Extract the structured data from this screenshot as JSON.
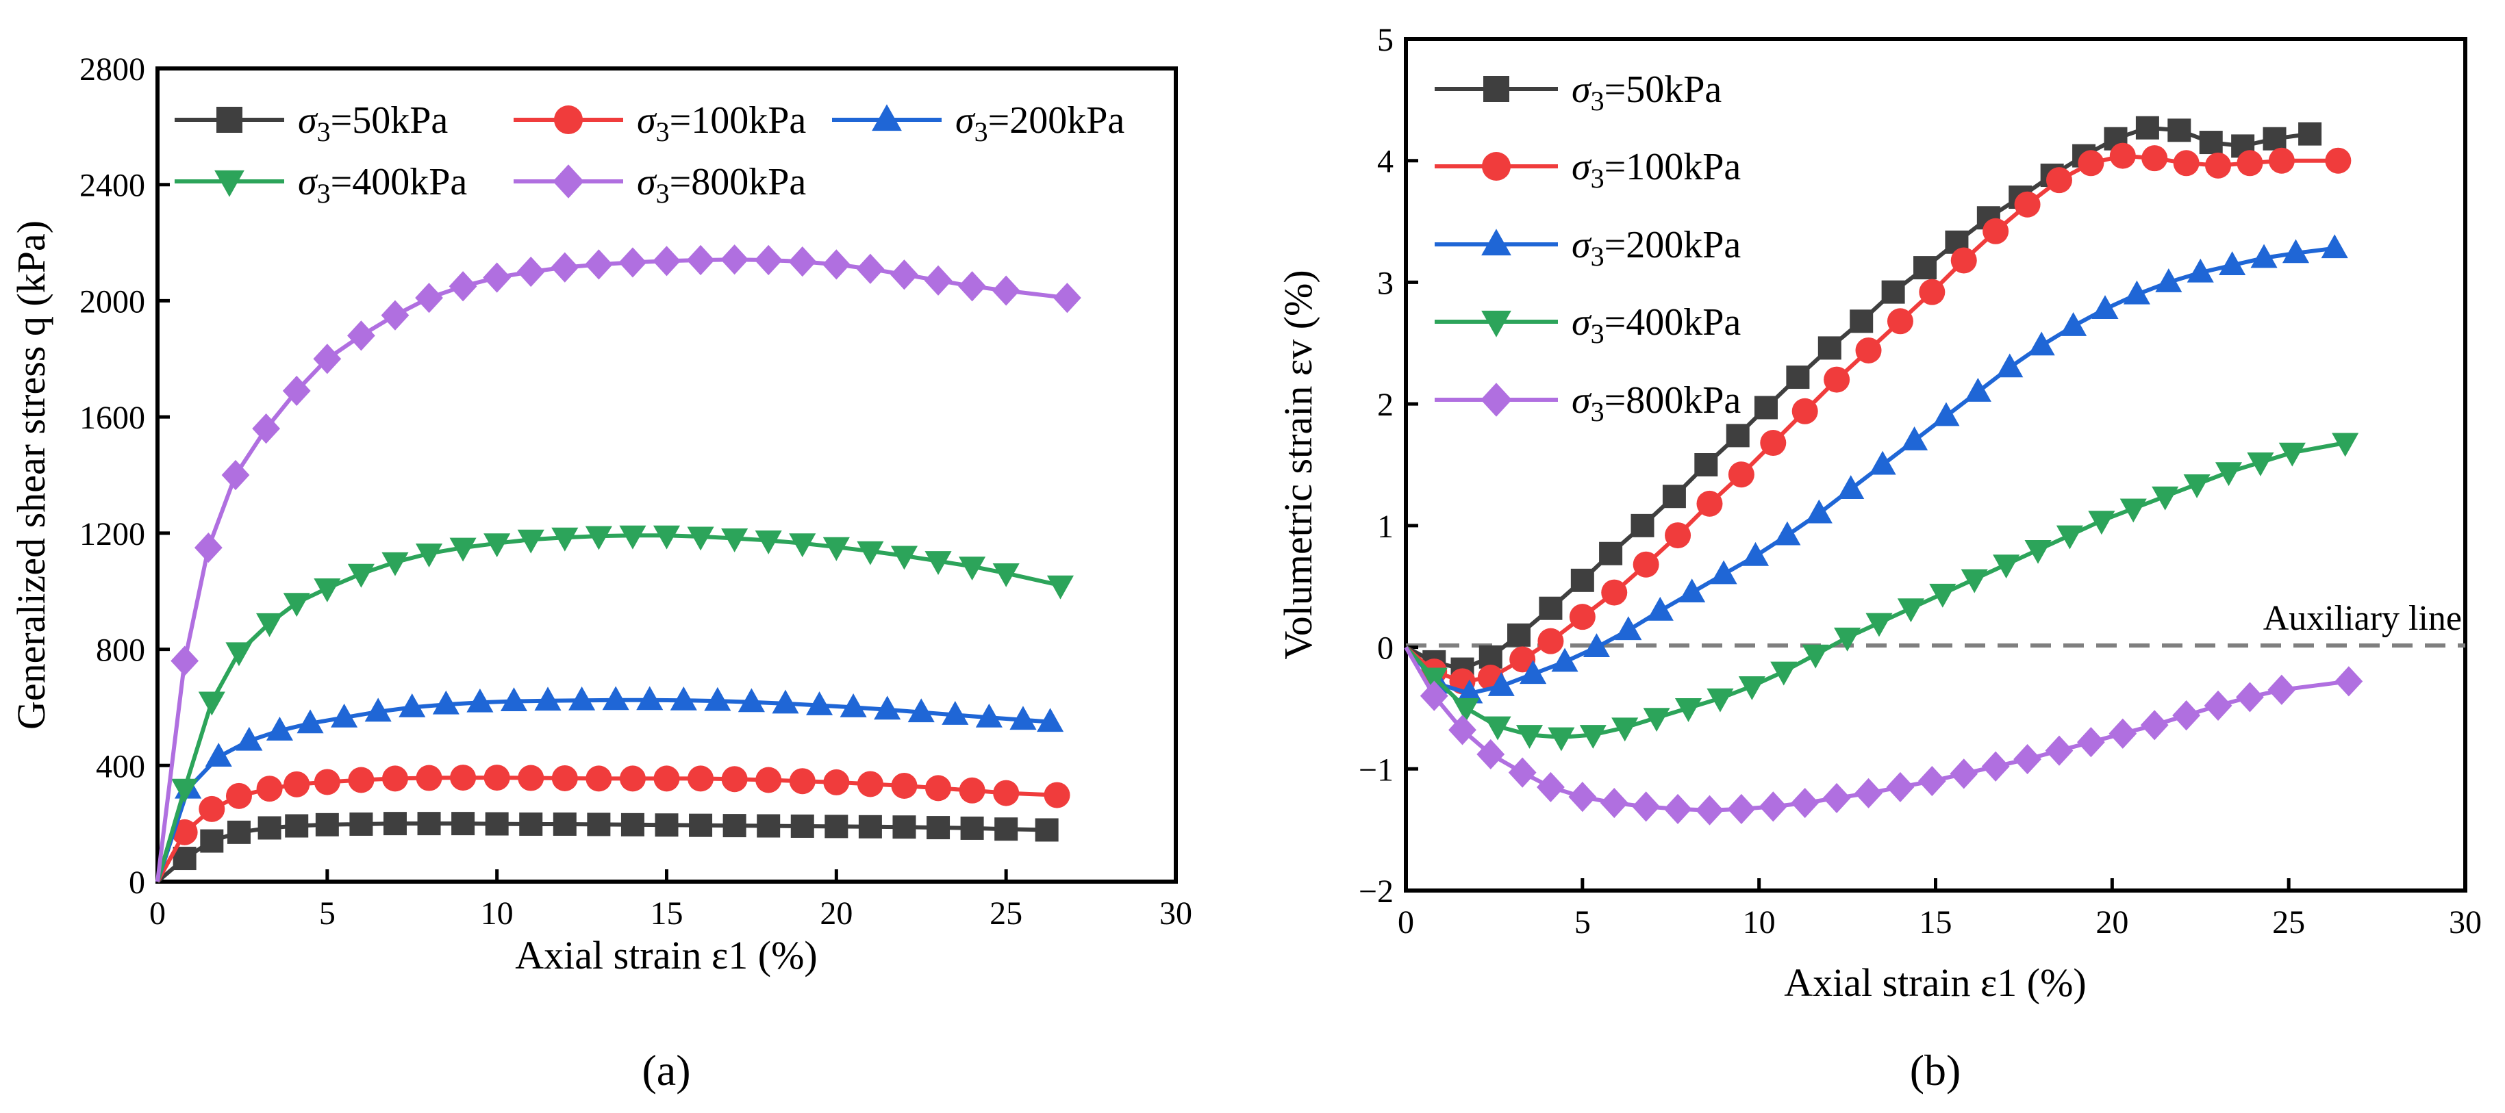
{
  "chart_data": [
    {
      "type": "line",
      "panel_label": "(a)",
      "xlabel": "Axial strain ε1 (%)",
      "ylabel": "Generalized shear stress q (kPa)",
      "xlim": [
        0,
        30
      ],
      "ylim": [
        0,
        2800
      ],
      "xticks": [
        0,
        5,
        10,
        15,
        20,
        25,
        30
      ],
      "yticks": [
        0,
        400,
        800,
        1200,
        1600,
        2000,
        2400,
        2800
      ],
      "legend_position": "top",
      "series": [
        {
          "name": "σ3=50kPa",
          "marker": "square",
          "color": "#3f3f3f",
          "x": [
            0,
            0.8,
            1.6,
            2.4,
            3.3,
            4.1,
            5,
            6,
            7,
            8,
            9,
            10,
            11,
            12,
            13,
            14,
            15,
            16,
            17,
            18,
            19,
            20,
            21,
            22,
            23,
            24,
            25,
            26.2
          ],
          "y": [
            0,
            80,
            140,
            170,
            185,
            192,
            196,
            198,
            200,
            200,
            200,
            199,
            198,
            198,
            197,
            196,
            195,
            194,
            193,
            192,
            191,
            190,
            189,
            188,
            186,
            184,
            181,
            178
          ]
        },
        {
          "name": "σ3=100kPa",
          "marker": "circle",
          "color": "#f03c3c",
          "x": [
            0,
            0.8,
            1.6,
            2.4,
            3.3,
            4.1,
            5,
            6,
            7,
            8,
            9,
            10,
            11,
            12,
            13,
            14,
            15,
            16,
            17,
            18,
            19,
            20,
            21,
            22,
            23,
            24,
            25,
            26.5
          ],
          "y": [
            0,
            170,
            250,
            295,
            320,
            335,
            343,
            350,
            355,
            357,
            358,
            358,
            357,
            356,
            355,
            355,
            355,
            355,
            353,
            350,
            346,
            342,
            336,
            330,
            322,
            314,
            305,
            298
          ]
        },
        {
          "name": "σ3=200kPa",
          "marker": "triangle-up",
          "color": "#1f66d6",
          "x": [
            0,
            0.9,
            1.8,
            2.7,
            3.6,
            4.5,
            5.5,
            6.5,
            7.5,
            8.5,
            9.5,
            10.5,
            11.5,
            12.5,
            13.5,
            14.5,
            15.5,
            16.5,
            17.5,
            18.5,
            19.5,
            20.5,
            21.5,
            22.5,
            23.5,
            24.5,
            25.5,
            26.3
          ],
          "y": [
            0,
            320,
            430,
            485,
            520,
            545,
            565,
            585,
            600,
            610,
            617,
            621,
            623,
            624,
            625,
            625,
            624,
            622,
            618,
            613,
            607,
            600,
            592,
            583,
            574,
            565,
            557,
            550
          ]
        },
        {
          "name": "σ3=400kPa",
          "marker": "triangle-down",
          "color": "#2ca45a",
          "x": [
            0,
            0.8,
            1.6,
            2.4,
            3.3,
            4.1,
            5,
            6,
            7,
            8,
            9,
            10,
            11,
            12,
            13,
            14,
            15,
            16,
            17,
            18,
            19,
            20,
            21,
            22,
            23,
            24,
            25,
            26.6
          ],
          "y": [
            0,
            320,
            620,
            790,
            890,
            960,
            1010,
            1060,
            1100,
            1130,
            1150,
            1165,
            1178,
            1185,
            1190,
            1192,
            1192,
            1188,
            1182,
            1175,
            1165,
            1152,
            1138,
            1122,
            1104,
            1085,
            1062,
            1020
          ]
        },
        {
          "name": "σ3=800kPa",
          "marker": "diamond",
          "color": "#b06fe0",
          "x": [
            0,
            0.8,
            1.5,
            2.3,
            3.2,
            4.1,
            5,
            6,
            7,
            8,
            9,
            10,
            11,
            12,
            13,
            14,
            15,
            16,
            17,
            18,
            19,
            20,
            21,
            22,
            23,
            24,
            25,
            26.8
          ],
          "y": [
            0,
            760,
            1150,
            1400,
            1560,
            1690,
            1800,
            1880,
            1950,
            2010,
            2050,
            2080,
            2100,
            2115,
            2125,
            2132,
            2137,
            2140,
            2142,
            2140,
            2135,
            2125,
            2110,
            2090,
            2070,
            2050,
            2035,
            2010
          ]
        }
      ]
    },
    {
      "type": "line",
      "panel_label": "(b)",
      "xlabel": "Axial strain ε1 (%)",
      "ylabel": "Volumetric strain εv (%)",
      "xlim": [
        0,
        30
      ],
      "ylim": [
        -2,
        5
      ],
      "xticks": [
        0,
        5,
        10,
        15,
        20,
        25,
        30
      ],
      "yticks": [
        -2,
        -1,
        0,
        1,
        2,
        3,
        4,
        5
      ],
      "legend_position": "top-left",
      "annotations": [
        {
          "text": "Auxiliary line",
          "type": "hline",
          "y": 0
        }
      ],
      "series": [
        {
          "name": "σ3=50kPa",
          "marker": "square",
          "color": "#3f3f3f",
          "x": [
            0,
            0.8,
            1.6,
            2.4,
            3.2,
            4.1,
            5,
            5.8,
            6.7,
            7.6,
            8.5,
            9.4,
            10.2,
            11.1,
            12,
            12.9,
            13.8,
            14.7,
            15.6,
            16.5,
            17.4,
            18.3,
            19.2,
            20.1,
            21,
            21.9,
            22.8,
            23.7,
            24.6,
            25.6
          ],
          "y": [
            0,
            -0.12,
            -0.18,
            -0.08,
            0.1,
            0.32,
            0.55,
            0.77,
            1.0,
            1.24,
            1.5,
            1.74,
            1.97,
            2.22,
            2.46,
            2.68,
            2.92,
            3.12,
            3.33,
            3.53,
            3.7,
            3.88,
            4.04,
            4.18,
            4.27,
            4.25,
            4.15,
            4.12,
            4.18,
            4.22
          ]
        },
        {
          "name": "σ3=100kPa",
          "marker": "circle",
          "color": "#f03c3c",
          "x": [
            0,
            0.8,
            1.6,
            2.4,
            3.3,
            4.1,
            5,
            5.9,
            6.8,
            7.7,
            8.6,
            9.5,
            10.4,
            11.3,
            12.2,
            13.1,
            14,
            14.9,
            15.8,
            16.7,
            17.6,
            18.5,
            19.4,
            20.3,
            21.2,
            22.1,
            23,
            23.9,
            24.8,
            26.4
          ],
          "y": [
            0,
            -0.2,
            -0.28,
            -0.25,
            -0.1,
            0.05,
            0.25,
            0.45,
            0.68,
            0.92,
            1.18,
            1.42,
            1.68,
            1.94,
            2.2,
            2.44,
            2.68,
            2.92,
            3.18,
            3.42,
            3.64,
            3.84,
            3.98,
            4.04,
            4.02,
            3.98,
            3.96,
            3.98,
            4.0,
            4.0
          ]
        },
        {
          "name": "σ3=200kPa",
          "marker": "triangle-up",
          "color": "#1f66d6",
          "x": [
            0,
            0.9,
            1.8,
            2.7,
            3.6,
            4.5,
            5.4,
            6.3,
            7.2,
            8.1,
            9,
            9.9,
            10.8,
            11.7,
            12.6,
            13.5,
            14.4,
            15.3,
            16.2,
            17.1,
            18,
            18.9,
            19.8,
            20.7,
            21.6,
            22.5,
            23.4,
            24.3,
            25.2,
            26.3
          ],
          "y": [
            0,
            -0.3,
            -0.38,
            -0.32,
            -0.22,
            -0.12,
            0.0,
            0.14,
            0.3,
            0.45,
            0.6,
            0.75,
            0.92,
            1.1,
            1.3,
            1.5,
            1.7,
            1.9,
            2.1,
            2.3,
            2.48,
            2.64,
            2.78,
            2.9,
            3.0,
            3.08,
            3.14,
            3.2,
            3.24,
            3.28
          ]
        },
        {
          "name": "σ3=400kPa",
          "marker": "triangle-down",
          "color": "#2ca45a",
          "x": [
            0,
            0.8,
            1.7,
            2.6,
            3.5,
            4.4,
            5.3,
            6.2,
            7.1,
            8,
            8.9,
            9.8,
            10.7,
            11.6,
            12.5,
            13.4,
            14.3,
            15.2,
            16.1,
            17,
            17.9,
            18.8,
            19.7,
            20.6,
            21.5,
            22.4,
            23.3,
            24.2,
            25.1,
            26.6
          ],
          "y": [
            0,
            -0.25,
            -0.5,
            -0.65,
            -0.72,
            -0.74,
            -0.72,
            -0.66,
            -0.58,
            -0.5,
            -0.42,
            -0.32,
            -0.2,
            -0.06,
            0.08,
            0.2,
            0.32,
            0.44,
            0.56,
            0.68,
            0.8,
            0.92,
            1.04,
            1.14,
            1.24,
            1.34,
            1.44,
            1.52,
            1.6,
            1.68
          ]
        },
        {
          "name": "σ3=800kPa",
          "marker": "diamond",
          "color": "#b06fe0",
          "x": [
            0,
            0.8,
            1.6,
            2.4,
            3.3,
            4.1,
            5,
            5.9,
            6.8,
            7.7,
            8.6,
            9.5,
            10.4,
            11.3,
            12.2,
            13.1,
            14,
            14.9,
            15.8,
            16.7,
            17.6,
            18.5,
            19.4,
            20.3,
            21.2,
            22.1,
            23,
            23.9,
            24.8,
            26.7
          ],
          "y": [
            0,
            -0.4,
            -0.68,
            -0.88,
            -1.03,
            -1.15,
            -1.23,
            -1.28,
            -1.31,
            -1.33,
            -1.34,
            -1.33,
            -1.31,
            -1.28,
            -1.24,
            -1.2,
            -1.15,
            -1.1,
            -1.04,
            -0.98,
            -0.92,
            -0.85,
            -0.78,
            -0.71,
            -0.64,
            -0.56,
            -0.48,
            -0.41,
            -0.35,
            -0.28
          ]
        }
      ]
    }
  ]
}
